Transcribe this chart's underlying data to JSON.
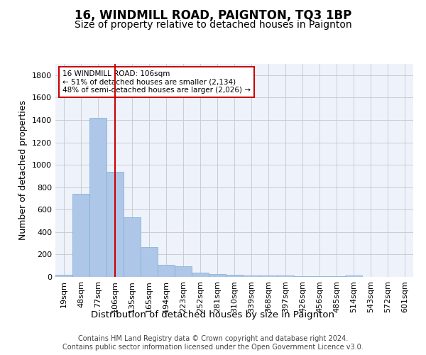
{
  "title": "16, WINDMILL ROAD, PAIGNTON, TQ3 1BP",
  "subtitle": "Size of property relative to detached houses in Paignton",
  "xlabel": "Distribution of detached houses by size in Paignton",
  "ylabel": "Number of detached properties",
  "bar_values": [
    22,
    740,
    1420,
    940,
    530,
    265,
    105,
    95,
    40,
    28,
    20,
    10,
    10,
    10,
    8,
    5,
    5,
    12,
    0,
    0,
    0
  ],
  "bar_labels": [
    "19sqm",
    "48sqm",
    "77sqm",
    "106sqm",
    "135sqm",
    "165sqm",
    "194sqm",
    "223sqm",
    "252sqm",
    "281sqm",
    "310sqm",
    "339sqm",
    "368sqm",
    "397sqm",
    "426sqm",
    "456sqm",
    "485sqm",
    "514sqm",
    "543sqm",
    "572sqm",
    "601sqm"
  ],
  "bar_color": "#aec6e8",
  "bar_edge_color": "#7bafd4",
  "background_color": "#eef2fa",
  "grid_color": "#c8c8c8",
  "vline_color": "#cc0000",
  "annotation_text": "16 WINDMILL ROAD: 106sqm\n← 51% of detached houses are smaller (2,134)\n48% of semi-detached houses are larger (2,026) →",
  "annotation_box_color": "#ffffff",
  "annotation_box_edge": "#cc0000",
  "ylim": [
    0,
    1900
  ],
  "yticks": [
    0,
    200,
    400,
    600,
    800,
    1000,
    1200,
    1400,
    1600,
    1800
  ],
  "footer_line1": "Contains HM Land Registry data © Crown copyright and database right 2024.",
  "footer_line2": "Contains public sector information licensed under the Open Government Licence v3.0.",
  "title_fontsize": 12,
  "subtitle_fontsize": 10,
  "xlabel_fontsize": 9.5,
  "ylabel_fontsize": 9,
  "tick_fontsize": 8,
  "footer_fontsize": 7,
  "annotation_fontsize": 7.5
}
